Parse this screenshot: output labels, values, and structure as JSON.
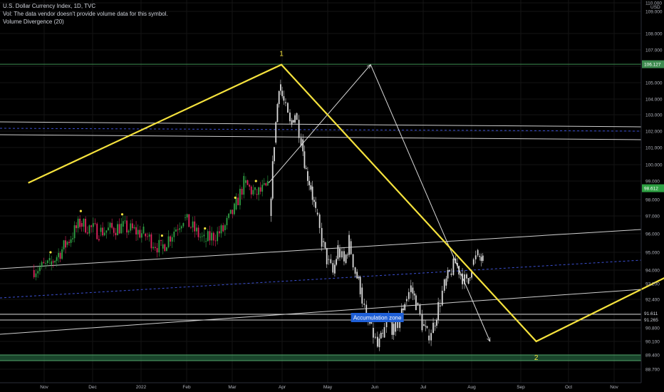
{
  "legend": {
    "symbol_line": "U.S. Dollar Currency Index, 1D, TVC",
    "vol_line": "Vol: The data vendor doesn't provide volume data for this symbol.",
    "indicator_line": "Volume Divergence (20)"
  },
  "currency": "USD",
  "colors": {
    "background": "#000000",
    "price_up": "#2ea043",
    "price_down": "#e0245e",
    "projection": "#d9d9d9",
    "wave": "#f5e23d",
    "accumulation_label_bg": "#1f5fd6",
    "accumulation_zone": "#2e7d4f",
    "resistance_line": "#3d8b4f",
    "dashed_channel": "#3b4fd1",
    "trend_lines": "#cfcfcf"
  },
  "chart_data": {
    "type": "candlestick",
    "title": "U.S. Dollar Currency Index, 1D, TVC",
    "x_ticks": [
      "Nov",
      "Dec",
      "2022",
      "Feb",
      "Mar",
      "Apr",
      "May",
      "Jun",
      "Jul",
      "Aug",
      "Sep",
      "Oct",
      "Nov"
    ],
    "y_ticks": [
      110.0,
      109.0,
      108.0,
      107.0,
      106.0,
      105.0,
      104.0,
      103.0,
      102.0,
      101.0,
      100.0,
      99.0,
      98.0,
      97.0,
      96.0,
      95.0,
      94.0,
      93.2,
      92.4,
      91.6,
      90.8,
      90.1,
      89.4,
      88.7
    ],
    "y_range": [
      88.5,
      110.0
    ],
    "price_labels": [
      {
        "value": 106.127,
        "text": "106.127",
        "color": "#3d8b4f"
      },
      {
        "value": 98.612,
        "text": "98.612",
        "color": "#2ea043"
      },
      {
        "value": 91.611,
        "text": "91.611",
        "color": "#000000"
      },
      {
        "value": 91.265,
        "text": "91.265",
        "color": "#000000"
      }
    ],
    "price_path_solid": {
      "x": [
        "2021-10-25",
        "2021-11-05",
        "2021-11-15",
        "2021-11-24",
        "2021-12-06",
        "2021-12-20",
        "2022-01-03",
        "2022-01-14",
        "2022-01-28",
        "2022-02-10",
        "2022-02-22",
        "2022-03-01",
        "2022-03-07",
        "2022-03-14",
        "2022-03-22"
      ],
      "y": [
        94.0,
        94.3,
        95.4,
        96.6,
        96.1,
        96.4,
        96.0,
        95.2,
        96.9,
        95.6,
        96.2,
        97.4,
        98.9,
        98.3,
        98.6
      ]
    },
    "price_path_projected": {
      "x": [
        "2022-03-23",
        "2022-03-26",
        "2022-03-29",
        "2022-04-01",
        "2022-04-05",
        "2022-04-08",
        "2022-04-12",
        "2022-04-15",
        "2022-04-18",
        "2022-04-21",
        "2022-04-25",
        "2022-04-28",
        "2022-05-02",
        "2022-05-05",
        "2022-05-09",
        "2022-05-12",
        "2022-05-16",
        "2022-05-19",
        "2022-05-23",
        "2022-05-26",
        "2022-05-30",
        "2022-06-02",
        "2022-06-06",
        "2022-06-09",
        "2022-06-13",
        "2022-06-16",
        "2022-06-20",
        "2022-06-23",
        "2022-06-27",
        "2022-06-30",
        "2022-07-04",
        "2022-07-07",
        "2022-07-11",
        "2022-07-14",
        "2022-07-18",
        "2022-07-21",
        "2022-07-25",
        "2022-07-28",
        "2022-08-01",
        "2022-08-04"
      ],
      "y": [
        97.0,
        101.3,
        104.9,
        103.8,
        102.4,
        103.1,
        101.5,
        99.6,
        98.7,
        97.2,
        95.6,
        94.6,
        93.8,
        95.2,
        94.4,
        95.6,
        93.9,
        93.0,
        91.3,
        90.8,
        89.8,
        90.3,
        91.4,
        90.6,
        91.3,
        92.3,
        93.0,
        92.2,
        91.0,
        90.4,
        90.9,
        92.0,
        93.1,
        93.8,
        94.4,
        93.8,
        93.2,
        94.3,
        94.8,
        94.5
      ]
    },
    "wave_labels": [
      {
        "text": "1",
        "x": "2022-03-30",
        "y": 106.1
      },
      {
        "text": "2",
        "x": "2022-09-06",
        "y": 89.8
      }
    ],
    "wave_path": {
      "x": [
        "2021-10-22",
        "2022-03-30",
        "2022-09-06",
        "2022-11-29"
      ],
      "y": [
        98.9,
        106.1,
        90.1,
        93.7
      ]
    },
    "projection_path": {
      "x": [
        "2022-03-22",
        "2022-05-25",
        "2022-08-08"
      ],
      "y": [
        98.9,
        106.1,
        90.1
      ]
    },
    "annotation": {
      "text": "Accumulation zone",
      "x": "2022-06-13",
      "y": 91.5
    },
    "horizontal_levels": [
      106.127,
      91.611,
      91.265
    ]
  }
}
